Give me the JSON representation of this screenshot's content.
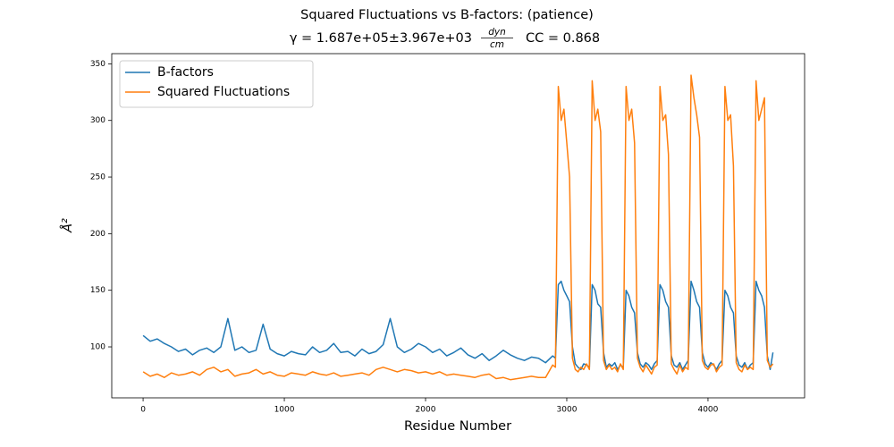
{
  "chart_data": {
    "type": "line",
    "title": "Squared Fluctuations vs B-factors:  (patience)",
    "subtitle": {
      "main": "γ = 1.687e+05±3.967e+03",
      "unit_numerator": "dyn",
      "unit_denominator": "cm",
      "correlation": "CC = 0.868"
    },
    "x_label": "Residue Number",
    "y_label": "Å²",
    "xlim": [
      -222,
      4684
    ],
    "ylim": [
      55,
      359
    ],
    "xticks": [
      0,
      1000,
      2000,
      3000,
      4000
    ],
    "yticks": [
      100,
      150,
      200,
      250,
      300,
      350
    ],
    "legend": "upper left",
    "grid": false,
    "x": [
      0,
      50,
      100,
      150,
      200,
      250,
      300,
      350,
      400,
      450,
      500,
      550,
      600,
      650,
      700,
      750,
      800,
      850,
      900,
      950,
      1000,
      1050,
      1100,
      1150,
      1200,
      1250,
      1300,
      1350,
      1400,
      1450,
      1500,
      1550,
      1600,
      1650,
      1700,
      1750,
      1800,
      1850,
      1900,
      1950,
      2000,
      2050,
      2100,
      2150,
      2200,
      2250,
      2300,
      2350,
      2400,
      2450,
      2500,
      2550,
      2600,
      2650,
      2700,
      2750,
      2800,
      2850,
      2900,
      2920,
      2940,
      2960,
      2980,
      3000,
      3020,
      3040,
      3060,
      3080,
      3100,
      3120,
      3140,
      3160,
      3180,
      3200,
      3220,
      3240,
      3260,
      3280,
      3300,
      3320,
      3340,
      3360,
      3380,
      3400,
      3420,
      3440,
      3460,
      3480,
      3500,
      3520,
      3540,
      3560,
      3580,
      3600,
      3620,
      3640,
      3660,
      3680,
      3700,
      3720,
      3740,
      3760,
      3780,
      3800,
      3820,
      3840,
      3860,
      3880,
      3900,
      3920,
      3940,
      3960,
      3980,
      4000,
      4020,
      4040,
      4060,
      4080,
      4100,
      4120,
      4140,
      4160,
      4180,
      4200,
      4220,
      4240,
      4260,
      4280,
      4300,
      4320,
      4340,
      4360,
      4380,
      4400,
      4420,
      4440,
      4460
    ],
    "series": [
      {
        "name": "B-factors",
        "color": "#1f77b4",
        "values": [
          110,
          105,
          107,
          103,
          100,
          96,
          98,
          93,
          97,
          99,
          95,
          100,
          125,
          97,
          100,
          95,
          97,
          120,
          98,
          94,
          92,
          96,
          94,
          93,
          100,
          95,
          97,
          103,
          95,
          96,
          92,
          98,
          94,
          96,
          102,
          125,
          100,
          95,
          98,
          103,
          100,
          95,
          98,
          92,
          95,
          99,
          93,
          90,
          94,
          88,
          92,
          97,
          93,
          90,
          88,
          91,
          90,
          86,
          92,
          90,
          155,
          158,
          150,
          145,
          140,
          100,
          85,
          82,
          80,
          85,
          84,
          82,
          155,
          150,
          138,
          135,
          95,
          82,
          85,
          83,
          86,
          80,
          84,
          82,
          150,
          145,
          135,
          130,
          95,
          85,
          82,
          86,
          84,
          80,
          85,
          88,
          155,
          150,
          140,
          135,
          92,
          84,
          82,
          86,
          80,
          84,
          88,
          158,
          150,
          140,
          135,
          95,
          85,
          82,
          86,
          84,
          80,
          85,
          88,
          150,
          145,
          135,
          130,
          92,
          84,
          82,
          86,
          80,
          84,
          86,
          158,
          150,
          145,
          135,
          92,
          80,
          95
        ]
      },
      {
        "name": "Squared Fluctuations",
        "color": "#ff7f0e",
        "values": [
          78,
          74,
          76,
          73,
          77,
          75,
          76,
          78,
          75,
          80,
          82,
          78,
          80,
          74,
          76,
          77,
          80,
          76,
          78,
          75,
          74,
          77,
          76,
          75,
          78,
          76,
          75,
          77,
          74,
          75,
          76,
          77,
          75,
          80,
          82,
          80,
          78,
          80,
          79,
          77,
          78,
          76,
          78,
          75,
          76,
          75,
          74,
          73,
          75,
          76,
          72,
          73,
          71,
          72,
          73,
          74,
          73,
          73,
          84,
          82,
          330,
          300,
          310,
          280,
          250,
          90,
          80,
          78,
          82,
          80,
          85,
          80,
          335,
          300,
          310,
          290,
          88,
          80,
          84,
          80,
          82,
          78,
          85,
          80,
          330,
          300,
          310,
          280,
          90,
          82,
          78,
          84,
          80,
          76,
          82,
          84,
          330,
          300,
          305,
          270,
          85,
          80,
          76,
          84,
          78,
          82,
          80,
          340,
          320,
          305,
          285,
          88,
          82,
          80,
          84,
          85,
          78,
          82,
          84,
          330,
          300,
          305,
          260,
          86,
          80,
          78,
          84,
          80,
          82,
          80,
          335,
          300,
          310,
          320,
          88,
          82,
          85
        ]
      }
    ]
  }
}
